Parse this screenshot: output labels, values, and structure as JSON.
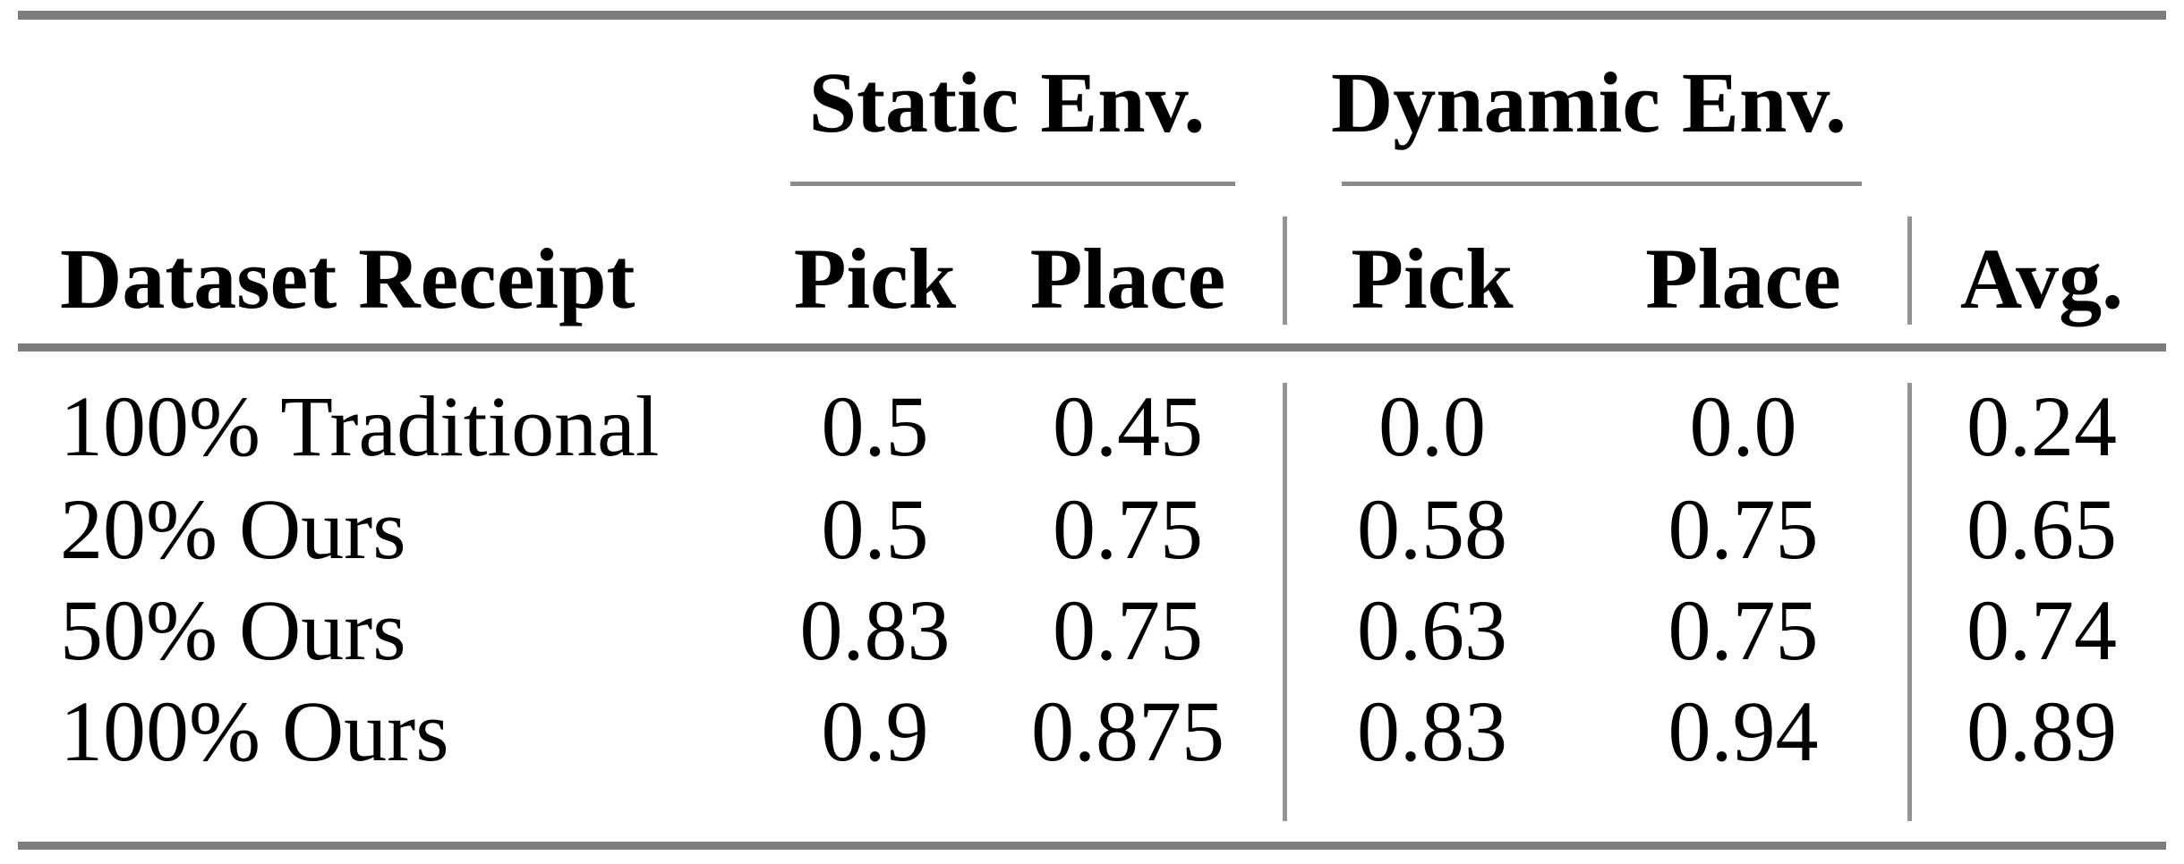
{
  "table": {
    "group_headers": [
      {
        "label": "Static Env."
      },
      {
        "label": "Dynamic Env."
      }
    ],
    "columns": [
      "Dataset Receipt",
      "Pick",
      "Place",
      "Pick",
      "Place",
      "Avg."
    ],
    "rows": [
      {
        "label": "100% Traditional",
        "values": [
          "0.5",
          "0.45",
          "0.0",
          "0.0",
          "0.24"
        ]
      },
      {
        "label": "20% Ours",
        "values": [
          "0.5",
          "0.75",
          "0.58",
          "0.75",
          "0.65"
        ]
      },
      {
        "label": "50% Ours",
        "values": [
          "0.83",
          "0.75",
          "0.63",
          "0.75",
          "0.74"
        ]
      },
      {
        "label": "100% Ours",
        "values": [
          "0.9",
          "0.875",
          "0.83",
          "0.94",
          "0.89"
        ]
      }
    ],
    "colors": {
      "background": "#ffffff",
      "text": "#000000",
      "rule_thick": "#7d7d7d",
      "rule_thin": "#8b8b8b",
      "rule_vertical": "#949494"
    }
  },
  "chart_data": {
    "type": "table",
    "title": "",
    "columns": [
      "Dataset Receipt",
      "Static Env. Pick",
      "Static Env. Place",
      "Dynamic Env. Pick",
      "Dynamic Env. Place",
      "Avg."
    ],
    "rows": [
      [
        "100% Traditional",
        0.5,
        0.45,
        0.0,
        0.0,
        0.24
      ],
      [
        "20% Ours",
        0.5,
        0.75,
        0.58,
        0.75,
        0.65
      ],
      [
        "50% Ours",
        0.83,
        0.75,
        0.63,
        0.75,
        0.74
      ],
      [
        "100% Ours",
        0.9,
        0.875,
        0.83,
        0.94,
        0.89
      ]
    ]
  }
}
